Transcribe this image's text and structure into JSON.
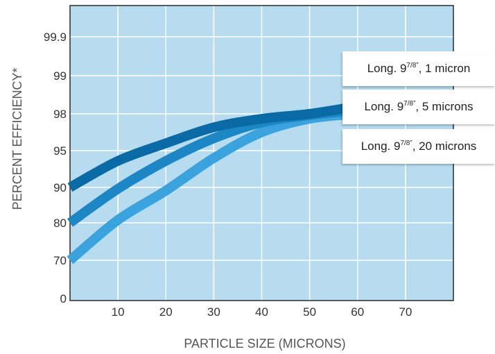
{
  "chart_data": {
    "type": "line",
    "xlabel": "PARTICLE SIZE (MICRONS)",
    "ylabel": "PERCENT EFFICIENCY*",
    "x_ticks": [
      "10",
      "20",
      "30",
      "40",
      "50",
      "60",
      "70"
    ],
    "x_tick_values": [
      10,
      20,
      30,
      40,
      50,
      60,
      70
    ],
    "xlim": [
      0,
      80
    ],
    "y_ticks": [
      "0",
      "70",
      "80",
      "90",
      "95",
      "98",
      "99",
      "99.9"
    ],
    "grid": true,
    "series": [
      {
        "name": "Long. 9⁷ᐟ⁸”, 1 micron",
        "label_pre": "Long. 9",
        "label_sup": "7/8”",
        "label_post": ", 1 micron",
        "color": "#0a6aa5",
        "x": [
          0,
          10,
          20,
          30,
          40,
          50,
          60
        ],
        "y": [
          90,
          93.6,
          95.6,
          96.9,
          97.6,
          98.0,
          98.2
        ]
      },
      {
        "name": "Long. 9 7/8”, 5 microns",
        "label_pre": "Long. 9",
        "label_sup": "7/8”",
        "label_post": ", 5  microns",
        "color": "#1d87c6",
        "x": [
          0,
          10,
          20,
          30,
          40,
          50,
          60
        ],
        "y": [
          80,
          89.6,
          93.6,
          96.0,
          97.3,
          97.9,
          98.1
        ]
      },
      {
        "name": "Long. 9 7/8”, 20 microns",
        "label_pre": "Long. 9",
        "label_sup": "7/8”",
        "label_post": ", 20 microns",
        "color": "#3aa3de",
        "x": [
          0,
          10,
          20,
          30,
          40,
          50,
          60
        ],
        "y": [
          70,
          80.8,
          89.1,
          94.0,
          96.5,
          97.6,
          98.0
        ]
      }
    ],
    "plot_background": "#b7dcef",
    "grid_color": "#ffffff",
    "legend_position": "right"
  }
}
